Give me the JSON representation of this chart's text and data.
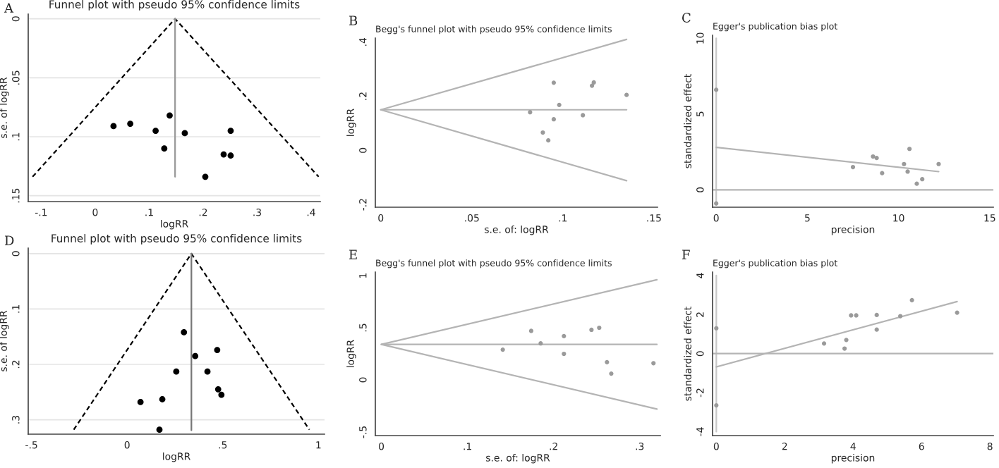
{
  "chart_data": [
    {
      "type": "scatter",
      "title": "Funnel plot with pseudo 95% confidence limits",
      "xlabel": "logRR",
      "ylabel": "s.e. of logRR",
      "annotations": [
        "A"
      ],
      "grid": "y",
      "xlim": [
        -0.124,
        0.417
      ],
      "xticks": [
        {
          "value": -0.1,
          "label": "-.1"
        },
        0,
        {
          "value": 0.1,
          "label": ".1"
        },
        {
          "value": 0.2,
          "label": ".2"
        },
        {
          "value": 0.3,
          "label": ".3"
        },
        {
          "value": 0.4,
          "label": ".4"
        }
      ],
      "ylim": [
        0.155,
        -0.004
      ],
      "yticks": [
        0,
        {
          "value": 0.05,
          "label": ".05"
        },
        {
          "value": 0.1,
          "label": ".1"
        },
        {
          "value": 0.15,
          "label": ".15"
        }
      ],
      "series": [
        {
          "type": "line",
          "line_style": "dashed",
          "color": "#000000",
          "x": [
            -0.116,
            0.148,
            0.414
          ],
          "values": [
            0.134,
            0,
            0.134
          ]
        },
        {
          "type": "line",
          "line_style": "solid",
          "color": "#999999",
          "x": [
            0.148,
            0.148
          ],
          "values": [
            0,
            0.134
          ]
        },
        {
          "type": "scatter",
          "marker": "circle",
          "color": "#000000",
          "x": [
            0.034,
            0.065,
            0.112,
            0.138,
            0.128,
            0.166,
            0.251,
            0.238,
            0.251,
            0.204
          ],
          "values": [
            0.091,
            0.089,
            0.095,
            0.082,
            0.11,
            0.097,
            0.095,
            0.115,
            0.116,
            0.134
          ]
        }
      ]
    },
    {
      "type": "scatter",
      "title": "Begg's funnel plot with pseudo 95% confidence limits",
      "xlabel": "s.e. of: logRR",
      "ylabel": "logRR",
      "annotations": [
        "B"
      ],
      "xlim": [
        -0.003,
        0.152
      ],
      "xticks": [
        0,
        {
          "value": 0.05,
          "label": ".05"
        },
        {
          "value": 0.1,
          "label": ".1"
        },
        {
          "value": 0.15,
          "label": ".15"
        }
      ],
      "ylim": [
        -0.21,
        0.415
      ],
      "yticks": [
        {
          "value": -0.2,
          "label": "-.2"
        },
        0,
        {
          "value": 0.2,
          "label": ".2"
        },
        {
          "value": 0.4,
          "label": ".4"
        }
      ],
      "series": [
        {
          "type": "line",
          "line_style": "solid",
          "color": "#b4b4b4",
          "x": [
            0.135,
            0,
            0.135
          ],
          "values": [
            0.41,
            0.15,
            -0.112
          ]
        },
        {
          "type": "line",
          "line_style": "solid",
          "color": "#b4b4b4",
          "x": [
            0,
            0.135
          ],
          "values": [
            0.15,
            0.15
          ]
        },
        {
          "type": "scatter",
          "marker": "circle",
          "color": "#9a9a9a",
          "x": [
            0.082,
            0.089,
            0.092,
            0.095,
            0.095,
            0.098,
            0.111,
            0.116,
            0.117,
            0.135
          ],
          "values": [
            0.141,
            0.066,
            0.037,
            0.25,
            0.115,
            0.168,
            0.13,
            0.239,
            0.251,
            0.205
          ]
        }
      ]
    },
    {
      "type": "scatter",
      "title": "Egger's publication bias plot",
      "xlabel": "precision",
      "ylabel": "standardized effect",
      "annotations": [
        "C"
      ],
      "xlim": [
        -0.2,
        15.2
      ],
      "xticks": [
        0,
        5,
        10,
        15
      ],
      "ylim": [
        -1.15,
        10.2
      ],
      "yticks": [
        0,
        5,
        10
      ],
      "ref_lines": [
        {
          "axis": "y",
          "value": 0,
          "color": "#b4b4b4"
        }
      ],
      "series": [
        {
          "type": "line",
          "line_style": "solid",
          "color": "#c8c8c8",
          "x": [
            0,
            0
          ],
          "values": [
            -1.0,
            10
          ]
        },
        {
          "type": "line",
          "line_style": "solid",
          "color": "#b4b4b4",
          "x": [
            0,
            12.2
          ],
          "values": [
            2.8,
            1.2
          ]
        },
        {
          "type": "scatter",
          "marker": "circle",
          "color": "#9a9a9a",
          "x": [
            0,
            0,
            7.5,
            8.6,
            8.8,
            9.1,
            10.3,
            10.5,
            10.6,
            11.0,
            11.3,
            12.2
          ],
          "values": [
            6.6,
            -0.9,
            1.5,
            2.2,
            2.1,
            1.1,
            1.7,
            1.2,
            2.7,
            0.4,
            0.7,
            1.7
          ]
        }
      ]
    },
    {
      "type": "scatter",
      "title": "Funnel plot with pseudo 95% confidence limits",
      "xlabel": "logRR",
      "ylabel": "s.e. of logRR",
      "annotations": [
        "D"
      ],
      "grid": "y",
      "xlim": [
        -0.517,
        1.032
      ],
      "xticks": [
        {
          "value": -0.5,
          "label": "-.5"
        },
        0,
        {
          "value": 0.5,
          "label": ".5"
        },
        1
      ],
      "ylim": [
        0.326,
        -0.01
      ],
      "yticks": [
        0,
        {
          "value": 0.1,
          "label": ".1"
        },
        {
          "value": 0.2,
          "label": ".2"
        },
        {
          "value": 0.3,
          "label": ".3"
        }
      ],
      "series": [
        {
          "type": "line",
          "line_style": "dashed",
          "color": "#000000",
          "x": [
            -0.279,
            0.336,
            0.953
          ],
          "values": [
            0.318,
            0,
            0.318
          ]
        },
        {
          "type": "line",
          "line_style": "solid",
          "color": "#777777",
          "x": [
            0.336,
            0.336
          ],
          "values": [
            0,
            0.319
          ]
        },
        {
          "type": "scatter",
          "marker": "circle",
          "color": "#000000",
          "x": [
            0.297,
            0.471,
            0.356,
            0.257,
            0.42,
            0.476,
            0.493,
            0.07,
            0.184,
            0.169
          ],
          "values": [
            0.142,
            0.174,
            0.185,
            0.213,
            0.213,
            0.245,
            0.255,
            0.268,
            0.263,
            0.318
          ]
        }
      ]
    },
    {
      "type": "scatter",
      "title": "Begg's funnel plot with pseudo 95% confidence limits",
      "xlabel": "s.e. of: logRR",
      "ylabel": "logRR",
      "annotations": [
        "E"
      ],
      "xlim": [
        -0.007,
        0.324
      ],
      "xticks": [
        0,
        {
          "value": 0.1,
          "label": ".1"
        },
        {
          "value": 0.2,
          "label": ".2"
        },
        {
          "value": 0.3,
          "label": ".3"
        }
      ],
      "ylim": [
        -0.534,
        1.034
      ],
      "yticks": [
        {
          "value": -0.5,
          "label": "-.5"
        },
        0,
        {
          "value": 0.5,
          "label": ".5"
        },
        1
      ],
      "series": [
        {
          "type": "line",
          "line_style": "solid",
          "color": "#b4b4b4",
          "x": [
            0.32,
            0,
            0.32
          ],
          "values": [
            0.96,
            0.34,
            -0.28
          ]
        },
        {
          "type": "line",
          "line_style": "solid",
          "color": "#b4b4b4",
          "x": [
            0,
            0.32
          ],
          "values": [
            0.34,
            0.34
          ]
        },
        {
          "type": "scatter",
          "marker": "circle",
          "color": "#9a9a9a",
          "x": [
            0.141,
            0.174,
            0.185,
            0.212,
            0.212,
            0.244,
            0.253,
            0.262,
            0.267,
            0.316
          ],
          "values": [
            0.29,
            0.47,
            0.35,
            0.42,
            0.25,
            0.48,
            0.5,
            0.17,
            0.06,
            0.16
          ]
        }
      ]
    },
    {
      "type": "scatter",
      "title": "Egger's publication bias plot",
      "xlabel": "precision",
      "ylabel": "standardized effect",
      "annotations": [
        "F"
      ],
      "xlim": [
        -0.11,
        8.1
      ],
      "xticks": [
        0,
        2,
        4,
        6,
        8
      ],
      "ylim": [
        -4.2,
        4.18
      ],
      "yticks": [
        -4,
        -2,
        0,
        2,
        4
      ],
      "ref_lines": [
        {
          "axis": "y",
          "value": 0,
          "color": "#b4b4b4"
        }
      ],
      "series": [
        {
          "type": "line",
          "line_style": "solid",
          "color": "#c8c8c8",
          "x": [
            0,
            0
          ],
          "values": [
            -4,
            4
          ]
        },
        {
          "type": "line",
          "line_style": "solid",
          "color": "#b4b4b4",
          "x": [
            0,
            7.04
          ],
          "values": [
            -0.68,
            2.67
          ]
        },
        {
          "type": "scatter",
          "marker": "circle",
          "color": "#9a9a9a",
          "x": [
            0,
            0,
            3.15,
            3.75,
            3.8,
            3.94,
            4.09,
            4.69,
            4.69,
            5.38,
            5.72,
            7.04
          ],
          "values": [
            1.3,
            -2.65,
            0.52,
            0.26,
            0.7,
            1.96,
            1.96,
            1.98,
            1.23,
            1.92,
            2.74,
            2.1
          ]
        }
      ]
    }
  ]
}
